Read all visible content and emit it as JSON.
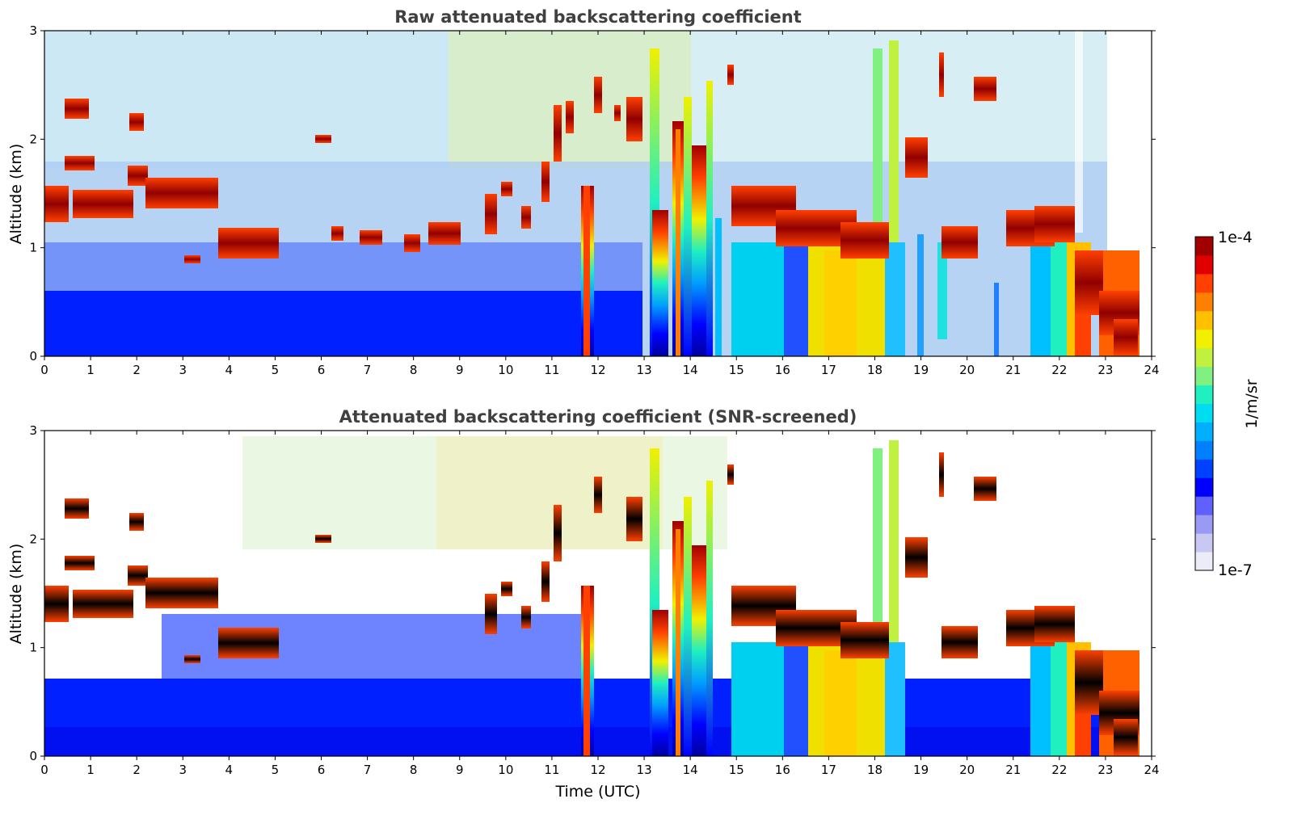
{
  "chart_data": [
    {
      "type": "heatmap",
      "title": "Raw attenuated backscattering coefficient",
      "xlabel": "",
      "ylabel": "Altitude (km)",
      "xlim": [
        0,
        24
      ],
      "ylim": [
        0,
        3
      ],
      "xticks": [
        "0",
        "1",
        "2",
        "3",
        "4",
        "5",
        "6",
        "7",
        "8",
        "9",
        "10",
        "11",
        "12",
        "13",
        "14",
        "15",
        "16",
        "17",
        "18",
        "19",
        "20",
        "21",
        "22",
        "23",
        "24"
      ],
      "yticks": [
        "0",
        "1",
        "2",
        "3"
      ],
      "color_scale": "log",
      "clim": [
        1e-07,
        0.0001
      ],
      "cloud_layers": [
        {
          "t": [
            0.0,
            0.9
          ],
          "z": [
            1.25,
            1.55
          ]
        },
        {
          "t": [
            0.5,
            0.9
          ],
          "z": [
            2.2,
            2.35
          ]
        },
        {
          "t": [
            0.5,
            1.1
          ],
          "z": [
            1.75,
            1.82
          ]
        },
        {
          "t": [
            0.7,
            2.0
          ],
          "z": [
            1.35,
            1.45
          ]
        },
        {
          "t": [
            1.8,
            3.8
          ],
          "z": [
            1.4,
            1.6
          ]
        },
        {
          "t": [
            1.9,
            2.1
          ],
          "z": [
            2.15,
            2.25
          ]
        },
        {
          "t": [
            3.0,
            3.3
          ],
          "z": [
            0.87,
            0.92
          ]
        },
        {
          "t": [
            4.0,
            5.1
          ],
          "z": [
            0.95,
            1.15
          ]
        },
        {
          "t": [
            5.9,
            6.2
          ],
          "z": [
            1.97,
            2.02
          ]
        },
        {
          "t": [
            7.0,
            8.5
          ],
          "z": [
            1.0,
            1.15
          ]
        },
        {
          "t": [
            8.5,
            9.2
          ],
          "z": [
            1.1,
            1.2
          ]
        },
        {
          "t": [
            9.7,
            10.5
          ],
          "z": [
            1.2,
            1.6
          ]
        },
        {
          "t": [
            10.5,
            11.6
          ],
          "z": [
            1.4,
            2.3
          ]
        },
        {
          "t": [
            12.0,
            13.0
          ],
          "z": [
            1.9,
            2.5
          ]
        },
        {
          "t": [
            14.8,
            16.5
          ],
          "z": [
            1.1,
            1.4
          ]
        },
        {
          "t": [
            16.0,
            18.5
          ],
          "z": [
            0.9,
            1.2
          ]
        },
        {
          "t": [
            18.8,
            19.2
          ],
          "z": [
            1.6,
            2.0
          ]
        },
        {
          "t": [
            19.4,
            19.5
          ],
          "z": [
            2.4,
            2.75
          ]
        },
        {
          "t": [
            20.2,
            20.5
          ],
          "z": [
            2.4,
            2.55
          ]
        },
        {
          "t": [
            21.0,
            22.3
          ],
          "z": [
            1.0,
            1.25
          ]
        },
        {
          "t": [
            22.0,
            23.8
          ],
          "z": [
            0.3,
            1.1
          ]
        }
      ],
      "precipitation_shafts": [
        {
          "t": [
            11.6,
            11.9
          ],
          "z": [
            0,
            1.6
          ]
        },
        {
          "t": [
            13.0,
            13.7
          ],
          "z": [
            0,
            1.6
          ]
        },
        {
          "t": [
            13.7,
            14.5
          ],
          "z": [
            0,
            2.3
          ]
        },
        {
          "t": [
            14.9,
            18.4
          ],
          "z": [
            0,
            1.0
          ]
        },
        {
          "t": [
            21.5,
            23.8
          ],
          "z": [
            0,
            1.0
          ]
        }
      ]
    },
    {
      "type": "heatmap",
      "title": "Attenuated backscattering coefficient (SNR-screened)",
      "xlabel": "Time (UTC)",
      "ylabel": "Altitude (km)",
      "xlim": [
        0,
        24
      ],
      "ylim": [
        0,
        3
      ],
      "xticks": [
        "0",
        "1",
        "2",
        "3",
        "4",
        "5",
        "6",
        "7",
        "8",
        "9",
        "10",
        "11",
        "12",
        "13",
        "14",
        "15",
        "16",
        "17",
        "18",
        "19",
        "20",
        "21",
        "22",
        "23",
        "24"
      ],
      "yticks": [
        "0",
        "1",
        "2",
        "3"
      ],
      "color_scale": "log",
      "clim": [
        1e-07,
        0.0001
      ],
      "screened": true
    }
  ],
  "colorbar": {
    "label": "1/m/sr",
    "max_label": "1e-4",
    "min_label": "1e-7",
    "colors": [
      "#ececf8",
      "#c8c8f2",
      "#9a9af5",
      "#6060ff",
      "#0000ff",
      "#0040ff",
      "#0080ff",
      "#00b0ff",
      "#00dcf0",
      "#20f0c0",
      "#80f080",
      "#c0f040",
      "#f0f000",
      "#ffc000",
      "#ff8000",
      "#ff4000",
      "#e00000",
      "#a00000"
    ]
  }
}
